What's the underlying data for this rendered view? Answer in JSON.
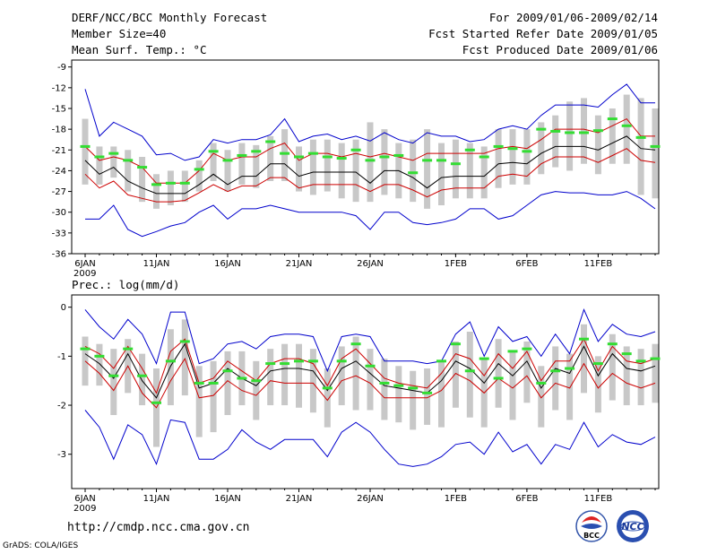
{
  "header": {
    "title": "DERF/NCC/BCC Monthly Forecast",
    "member_size": "Member Size=40",
    "variable": "Mean Surf. Temp.: °C",
    "valid_range": "For 2009/01/06-2009/02/14",
    "fcst_started": "Fcst Started Refer Date 2009/01/05",
    "fcst_produced": "Fcst Produced Date 2009/01/06"
  },
  "footer": {
    "url": "http://cmdp.ncc.cma.gov.cn",
    "credit": "GrADS: COLA/IGES",
    "logo_bcc": "BCC",
    "logo_ncc": "NCC"
  },
  "colors": {
    "mean": "#000000",
    "spread": "#cc0000",
    "extreme": "#0000cc",
    "box": "#c8c8c8",
    "marker": "#33dd33"
  },
  "chart_data": [
    {
      "type": "line",
      "title": "Mean Surf. Temp.: °C",
      "x_tick_labels": [
        "6JAN",
        "11JAN",
        "16JAN",
        "21JAN",
        "26JAN",
        "1FEB",
        "6FEB",
        "11FEB"
      ],
      "x_tick_days": [
        0,
        5,
        10,
        15,
        20,
        26,
        31,
        36
      ],
      "x_year_label": "2009",
      "y_ticks": [
        -9,
        -12,
        -15,
        -18,
        -21,
        -24,
        -27,
        -30,
        -33,
        -36
      ],
      "ylim": [
        -36,
        -8
      ],
      "series": [
        {
          "name": "max",
          "values": [
            -12.2,
            -19,
            -17,
            -18,
            -19,
            -21.7,
            -21.5,
            -22.5,
            -22,
            -19.5,
            -20,
            -19.5,
            -19.5,
            -18.8,
            -16.5,
            -19.8,
            -19,
            -18.7,
            -19.5,
            -19,
            -19.7,
            -18.5,
            -19.5,
            -20,
            -18.5,
            -19,
            -19,
            -19.8,
            -19.5,
            -18,
            -17.5,
            -18,
            -16,
            -14.5,
            -14.5,
            -14.5,
            -14.8,
            -13,
            -11.5,
            -14.2,
            -14.2
          ]
        },
        {
          "name": "upper",
          "values": [
            -20.5,
            -22.5,
            -22,
            -22.5,
            -23.5,
            -25.8,
            -25.8,
            -25.8,
            -24,
            -21.5,
            -22.5,
            -22,
            -22,
            -20.8,
            -20,
            -22.5,
            -21.5,
            -21.5,
            -22,
            -21.5,
            -22,
            -21.5,
            -22,
            -22.5,
            -21.5,
            -21.5,
            -21.5,
            -21.5,
            -21.5,
            -20.8,
            -20.5,
            -20.8,
            -19.5,
            -18,
            -18,
            -18,
            -18.5,
            -17.5,
            -16.5,
            -19,
            -19
          ]
        },
        {
          "name": "mean",
          "values": [
            -22.5,
            -24.5,
            -23.5,
            -25.5,
            -26.5,
            -27.3,
            -27.3,
            -27.3,
            -26,
            -24.5,
            -26,
            -24.8,
            -24.8,
            -23,
            -23,
            -24.8,
            -24.2,
            -24.2,
            -24.2,
            -24.2,
            -25.8,
            -24,
            -24,
            -25,
            -26.5,
            -25,
            -24.8,
            -24.8,
            -24.8,
            -23,
            -22.8,
            -23,
            -21.5,
            -20.5,
            -20.5,
            -20.5,
            -21,
            -20,
            -19,
            -20.8,
            -21
          ]
        },
        {
          "name": "lower",
          "values": [
            -24.5,
            -26.5,
            -25.5,
            -27.5,
            -28,
            -28.5,
            -28.5,
            -28.3,
            -27.2,
            -26,
            -27,
            -26.2,
            -26.2,
            -25,
            -25,
            -26.5,
            -26,
            -26,
            -26,
            -26,
            -27,
            -26,
            -26,
            -26.8,
            -27.8,
            -26.8,
            -26.5,
            -26.5,
            -26.5,
            -24.8,
            -24.5,
            -24.8,
            -23,
            -22,
            -22,
            -22,
            -22.8,
            -21.8,
            -20.8,
            -22.5,
            -22.8
          ]
        },
        {
          "name": "min",
          "values": [
            -31,
            -31,
            -29,
            -32.5,
            -33.5,
            -32.8,
            -32,
            -31.5,
            -30,
            -29,
            -31,
            -29.5,
            -29.5,
            -29,
            -29.5,
            -30,
            -30,
            -30,
            -30,
            -30.5,
            -32.5,
            -30,
            -30,
            -31.5,
            -31.8,
            -31.5,
            -31,
            -29.5,
            -29.5,
            -31,
            -30.5,
            -29,
            -27.5,
            -27,
            -27.2,
            -27.2,
            -27.5,
            -27.5,
            -27,
            -28,
            -29.5
          ]
        },
        {
          "name": "box_top",
          "values": [
            -16.5,
            -20.5,
            -20.5,
            -21,
            -22,
            -24.5,
            -24,
            -24,
            -22.5,
            -20,
            -21,
            -20,
            -20.3,
            -19,
            -18,
            -20.5,
            -19.5,
            -19.5,
            -20,
            -19.5,
            -17,
            -18,
            -20,
            -19.5,
            -18,
            -20,
            -19.5,
            -20,
            -20.5,
            -18,
            -18,
            -18,
            -17,
            -16,
            -14,
            -13.5,
            -16,
            -15,
            -13,
            -13.5,
            -15
          ]
        },
        {
          "name": "box_bottom",
          "values": [
            -26,
            -26,
            -25,
            -27,
            -28.5,
            -29.5,
            -29,
            -28.5,
            -27,
            -25.5,
            -27,
            -26,
            -26.5,
            -25.5,
            -25.5,
            -27,
            -27.5,
            -27,
            -28,
            -28.5,
            -28.5,
            -27.5,
            -28,
            -28.5,
            -29.5,
            -29,
            -28,
            -28,
            -28,
            -26.5,
            -26,
            -26,
            -24.5,
            -23.5,
            -24,
            -23,
            -24.5,
            -23,
            -23,
            -27.5,
            -28
          ]
        },
        {
          "name": "marker",
          "values": [
            -20.5,
            -22,
            -21.5,
            -22.5,
            -23.5,
            -26,
            -25.8,
            -25.8,
            -23.8,
            -21.2,
            -22.5,
            -21.8,
            -21.2,
            -19.8,
            -21.5,
            -22,
            -21.5,
            -22,
            -22.2,
            -21,
            -22.5,
            -22,
            -21.8,
            -24.3,
            -22.5,
            -22.5,
            -23,
            -21,
            -22,
            -20.5,
            -20.8,
            -21.2,
            -18,
            -18.3,
            -18.5,
            -18.5,
            -18.2,
            -16.5,
            -17.5,
            -19.2,
            -20.5
          ]
        }
      ]
    },
    {
      "type": "line",
      "title": "Prec.: log(mm/d)",
      "x_tick_labels": [
        "6JAN",
        "11JAN",
        "16JAN",
        "21JAN",
        "26JAN",
        "1FEB",
        "6FEB",
        "11FEB"
      ],
      "x_tick_days": [
        0,
        5,
        10,
        15,
        20,
        26,
        31,
        36
      ],
      "x_year_label": "2009",
      "y_ticks": [
        0,
        -1,
        -2,
        -3
      ],
      "ylim": [
        -3.7,
        0.25
      ],
      "series": [
        {
          "name": "max",
          "values": [
            -0.05,
            -0.4,
            -0.65,
            -0.25,
            -0.55,
            -1.15,
            -0.1,
            -0.1,
            -1.15,
            -1.05,
            -0.75,
            -0.7,
            -0.85,
            -0.6,
            -0.55,
            -0.55,
            -0.6,
            -1.3,
            -0.6,
            -0.55,
            -0.6,
            -1.1,
            -1.1,
            -1.1,
            -1.15,
            -1.1,
            -0.55,
            -0.3,
            -1.0,
            -0.4,
            -0.7,
            -0.6,
            -1.0,
            -0.55,
            -0.95,
            -0.05,
            -0.7,
            -0.35,
            -0.55,
            -0.6,
            -0.5
          ]
        },
        {
          "name": "upper",
          "values": [
            -0.8,
            -0.95,
            -1.25,
            -0.8,
            -1.25,
            -1.75,
            -0.9,
            -0.65,
            -1.55,
            -1.45,
            -1.1,
            -1.3,
            -1.5,
            -1.15,
            -1.05,
            -1.05,
            -1.15,
            -1.6,
            -1.05,
            -0.85,
            -1.15,
            -1.45,
            -1.55,
            -1.6,
            -1.65,
            -1.35,
            -0.95,
            -1.05,
            -1.4,
            -0.95,
            -1.25,
            -0.9,
            -1.5,
            -1.1,
            -1.1,
            -0.65,
            -1.3,
            -0.8,
            -1.1,
            -1.15,
            -1.05
          ]
        },
        {
          "name": "mean",
          "values": [
            -0.95,
            -1.15,
            -1.45,
            -0.95,
            -1.5,
            -1.85,
            -1.2,
            -0.75,
            -1.65,
            -1.55,
            -1.25,
            -1.45,
            -1.6,
            -1.3,
            -1.25,
            -1.25,
            -1.3,
            -1.7,
            -1.25,
            -1.1,
            -1.35,
            -1.6,
            -1.65,
            -1.7,
            -1.75,
            -1.5,
            -1.1,
            -1.25,
            -1.55,
            -1.15,
            -1.4,
            -1.1,
            -1.65,
            -1.25,
            -1.35,
            -0.8,
            -1.4,
            -0.95,
            -1.25,
            -1.3,
            -1.2
          ]
        },
        {
          "name": "lower",
          "values": [
            -1.1,
            -1.35,
            -1.7,
            -1.2,
            -1.75,
            -2.05,
            -1.5,
            -1.05,
            -1.85,
            -1.8,
            -1.5,
            -1.7,
            -1.8,
            -1.5,
            -1.55,
            -1.55,
            -1.55,
            -1.9,
            -1.5,
            -1.4,
            -1.55,
            -1.85,
            -1.85,
            -1.85,
            -1.85,
            -1.7,
            -1.35,
            -1.5,
            -1.75,
            -1.45,
            -1.65,
            -1.4,
            -1.85,
            -1.55,
            -1.65,
            -1.15,
            -1.65,
            -1.35,
            -1.55,
            -1.65,
            -1.55
          ]
        },
        {
          "name": "min",
          "values": [
            -2.1,
            -2.45,
            -3.1,
            -2.4,
            -2.6,
            -3.2,
            -2.3,
            -2.35,
            -3.1,
            -3.1,
            -2.9,
            -2.5,
            -2.75,
            -2.9,
            -2.7,
            -2.7,
            -2.7,
            -3.05,
            -2.55,
            -2.35,
            -2.55,
            -2.9,
            -3.2,
            -3.25,
            -3.2,
            -3.05,
            -2.8,
            -2.75,
            -3.0,
            -2.55,
            -2.95,
            -2.8,
            -3.2,
            -2.8,
            -2.9,
            -2.35,
            -2.85,
            -2.6,
            -2.75,
            -2.8,
            -2.65
          ]
        },
        {
          "name": "box_top",
          "values": [
            -0.6,
            -0.75,
            -0.85,
            -0.65,
            -0.95,
            -1.25,
            -0.45,
            -0.25,
            -1.2,
            -1.1,
            -0.9,
            -0.9,
            -1.1,
            -0.85,
            -0.75,
            -0.75,
            -0.85,
            -1.25,
            -0.8,
            -0.6,
            -0.85,
            -1.05,
            -1.2,
            -1.3,
            -1.25,
            -1.1,
            -0.7,
            -0.5,
            -1.05,
            -0.65,
            -0.9,
            -0.7,
            -1.2,
            -0.8,
            -0.95,
            -0.35,
            -1.0,
            -0.55,
            -0.8,
            -0.85,
            -0.75
          ]
        },
        {
          "name": "box_bottom",
          "values": [
            -1.6,
            -1.6,
            -2.2,
            -1.75,
            -2.0,
            -2.85,
            -2.0,
            -1.8,
            -2.65,
            -2.55,
            -2.2,
            -2.0,
            -2.3,
            -2.0,
            -2.0,
            -2.05,
            -2.15,
            -2.45,
            -2.0,
            -2.1,
            -2.1,
            -2.3,
            -2.35,
            -2.5,
            -2.4,
            -2.45,
            -2.05,
            -2.25,
            -2.45,
            -2.05,
            -2.3,
            -1.95,
            -2.45,
            -2.1,
            -2.3,
            -1.75,
            -2.15,
            -1.9,
            -2.0,
            -2.0,
            -1.95
          ]
        },
        {
          "name": "marker",
          "values": [
            -0.85,
            -1.0,
            -1.4,
            -0.85,
            -1.4,
            -1.95,
            -1.1,
            -0.7,
            -1.55,
            -1.55,
            -1.3,
            -1.45,
            -1.5,
            -1.15,
            -1.15,
            -1.1,
            -1.1,
            -1.65,
            -1.1,
            -0.75,
            -1.2,
            -1.55,
            -1.6,
            -1.65,
            -1.75,
            -1.1,
            -0.75,
            -1.3,
            -1.05,
            -1.45,
            -0.9,
            -0.85,
            -1.55,
            -1.3,
            -1.25,
            -0.65,
            -1.15,
            -0.75,
            -0.95,
            -1.1,
            -1.05
          ]
        }
      ]
    }
  ]
}
